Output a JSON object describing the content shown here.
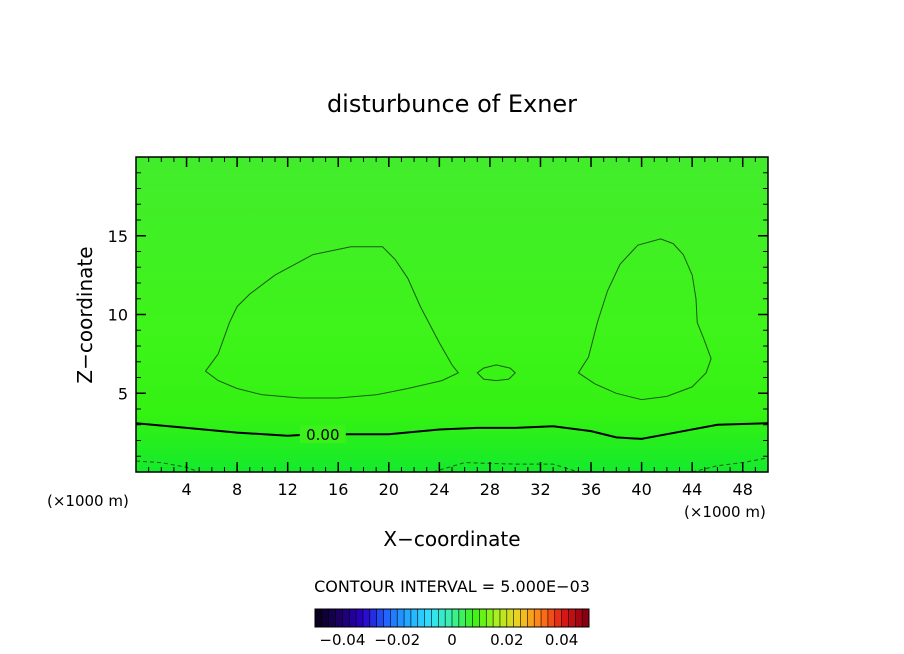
{
  "chart_data": {
    "type": "heatmap",
    "title": "disturbunce of Exner",
    "xlabel": "X−coordinate",
    "ylabel": "Z−coordinate",
    "x_unit_left": "(×1000 m)",
    "x_unit_right": "(×1000 m)",
    "xlim": [
      0,
      50
    ],
    "ylim": [
      0,
      20
    ],
    "x_ticks": [
      4,
      8,
      12,
      16,
      20,
      24,
      28,
      32,
      36,
      40,
      44,
      48
    ],
    "y_ticks": [
      5,
      10,
      15
    ],
    "field_color": "#3cf212",
    "contour_interval_text": "CONTOUR INTERVAL = 5.000E−03",
    "contour_label": "0.00",
    "zero_contour": {
      "x": [
        0,
        4,
        8,
        12,
        14,
        16,
        20,
        24,
        27,
        30,
        33,
        36,
        38,
        40,
        42,
        46,
        50
      ],
      "z": [
        3.1,
        2.8,
        2.5,
        2.3,
        2.4,
        2.4,
        2.4,
        2.7,
        2.8,
        2.8,
        2.9,
        2.6,
        2.2,
        2.1,
        2.4,
        3.0,
        3.1
      ]
    },
    "positive_contours": [
      {
        "x": [
          5.5,
          6.5,
          7.4,
          8,
          9,
          11,
          14,
          17,
          19.5,
          20.5,
          21.5,
          22.5,
          24,
          25,
          25.5,
          24.2,
          21.5,
          19,
          16,
          13,
          10,
          8,
          6.5,
          5.5
        ],
        "z": [
          6.4,
          7.5,
          9.5,
          10.5,
          11.3,
          12.5,
          13.8,
          14.3,
          14.3,
          13.5,
          12.3,
          10.5,
          8.2,
          6.8,
          6.3,
          5.8,
          5.3,
          4.9,
          4.7,
          4.7,
          4.9,
          5.3,
          5.8,
          6.4
        ]
      },
      {
        "x": [
          27,
          27.5,
          28.5,
          29.6,
          30,
          29.5,
          28.5,
          27.5,
          27
        ],
        "z": [
          6.3,
          6.6,
          6.8,
          6.6,
          6.3,
          5.9,
          5.8,
          5.9,
          6.3
        ]
      },
      {
        "x": [
          35,
          35.8,
          36.5,
          37.3,
          38.3,
          39.7,
          41.5,
          42.5,
          43.3,
          44,
          44.3,
          44.4,
          44.9,
          45.5,
          45.1,
          44,
          42,
          40,
          38,
          36.3,
          35
        ],
        "z": [
          6.3,
          7.3,
          9.5,
          11.5,
          13.2,
          14.4,
          14.8,
          14.5,
          13.8,
          12.5,
          11,
          9.5,
          8.5,
          7.2,
          6.3,
          5.4,
          4.8,
          4.6,
          5.0,
          5.6,
          6.3
        ]
      }
    ],
    "negative_contours": [
      {
        "x": [
          0,
          2,
          4,
          5
        ],
        "z": [
          0.7,
          0.6,
          0.3,
          0.0
        ]
      },
      {
        "x": [
          23.5,
          26,
          30,
          33,
          35
        ],
        "z": [
          0.0,
          0.6,
          0.5,
          0.5,
          0.0
        ]
      },
      {
        "x": [
          44,
          46,
          48,
          50
        ],
        "z": [
          0.0,
          0.4,
          0.6,
          0.9
        ]
      }
    ],
    "colorbar": {
      "range": [
        -0.05,
        0.05
      ],
      "ticks": [
        -0.04,
        -0.02,
        0,
        0.02,
        0.04
      ],
      "tick_labels": [
        "−0.04",
        "−0.02",
        "0",
        "0.02",
        "0.04"
      ],
      "colors": [
        "#0a0022",
        "#1c0066",
        "#2a00c8",
        "#2060ff",
        "#22a8ff",
        "#30e0ff",
        "#3cf0a0",
        "#3cf212",
        "#a8f020",
        "#f0d020",
        "#ff7a18",
        "#e01818",
        "#8a0010"
      ]
    }
  }
}
